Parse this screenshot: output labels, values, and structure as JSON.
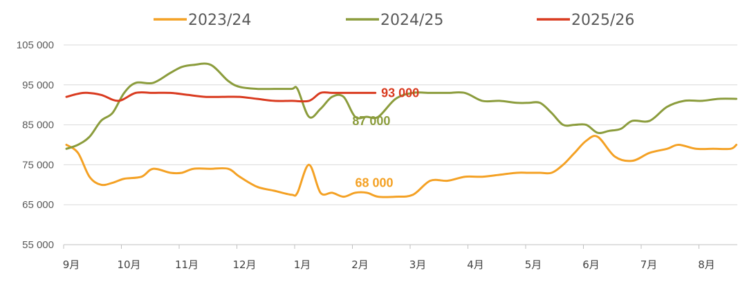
{
  "chart_data": {
    "type": "line",
    "title": "",
    "xlabel": "",
    "ylabel": "",
    "ylim": [
      55000,
      105000
    ],
    "yticks": [
      55000,
      65000,
      75000,
      85000,
      95000,
      105000
    ],
    "ytick_labels": [
      "55 000",
      "65 000",
      "75 000",
      "85 000",
      "95 000",
      "105 000"
    ],
    "categories": [
      "9月",
      "10月",
      "11月",
      "12月",
      "1月",
      "2月",
      "3月",
      "4月",
      "5月",
      "6月",
      "7月",
      "8月"
    ],
    "grid": "horizontal",
    "legend_position": "top",
    "series": [
      {
        "name": "2023/24",
        "color": "#F4A124",
        "x": [
          0.0,
          0.2,
          0.4,
          0.6,
          0.8,
          1.0,
          1.3,
          1.5,
          1.8,
          2.0,
          2.2,
          2.5,
          2.8,
          3.0,
          3.3,
          3.6,
          3.9,
          4.0,
          4.2,
          4.4,
          4.6,
          4.8,
          5.0,
          5.2,
          5.4,
          5.7,
          6.0,
          6.3,
          6.6,
          6.9,
          7.2,
          7.5,
          7.8,
          8.0,
          8.2,
          8.4,
          8.6,
          8.8,
          9.0,
          9.2,
          9.5,
          9.8,
          10.1,
          10.4,
          10.6,
          10.9,
          11.2,
          11.5,
          11.6
        ],
        "values": [
          80000,
          78000,
          72000,
          70000,
          70500,
          71500,
          72000,
          74000,
          73000,
          73000,
          74000,
          74000,
          74000,
          72000,
          69500,
          68500,
          67500,
          68000,
          75000,
          68000,
          68000,
          67000,
          68000,
          68000,
          67000,
          67000,
          67500,
          71000,
          71000,
          72000,
          72000,
          72500,
          73000,
          73000,
          73000,
          73000,
          75000,
          78000,
          81000,
          82000,
          77000,
          76000,
          78000,
          79000,
          80000,
          79000,
          79000,
          79000,
          80000
        ]
      },
      {
        "name": "2024/25",
        "color": "#8B9C3C",
        "x": [
          0.0,
          0.2,
          0.4,
          0.6,
          0.8,
          1.0,
          1.2,
          1.5,
          1.8,
          2.0,
          2.2,
          2.5,
          2.8,
          3.0,
          3.3,
          3.6,
          3.9,
          4.0,
          4.2,
          4.4,
          4.6,
          4.8,
          5.0,
          5.2,
          5.4,
          5.7,
          6.0,
          6.3,
          6.6,
          6.9,
          7.2,
          7.5,
          7.8,
          8.0,
          8.2,
          8.4,
          8.6,
          8.8,
          9.0,
          9.2,
          9.4,
          9.6,
          9.8,
          10.1,
          10.4,
          10.7,
          11.0,
          11.3,
          11.6
        ],
        "values": [
          79000,
          80000,
          82000,
          86000,
          88000,
          93000,
          95500,
          95500,
          98000,
          99500,
          100000,
          100000,
          96000,
          94500,
          94000,
          94000,
          94000,
          94000,
          87000,
          89000,
          92000,
          92000,
          87000,
          87000,
          87000,
          91500,
          93000,
          93000,
          93000,
          93000,
          91000,
          91000,
          90500,
          90500,
          90500,
          88000,
          85000,
          85000,
          85000,
          83000,
          83500,
          84000,
          86000,
          86000,
          89500,
          91000,
          91000,
          91500,
          91500
        ]
      },
      {
        "name": "2025/26",
        "color": "#D93A1F",
        "x": [
          0.0,
          0.3,
          0.6,
          0.9,
          1.2,
          1.5,
          1.8,
          2.1,
          2.4,
          2.7,
          3.0,
          3.3,
          3.6,
          3.9,
          4.2,
          4.4,
          4.6,
          4.9,
          5.2,
          5.35
        ],
        "values": [
          92000,
          93000,
          92500,
          91000,
          93000,
          93000,
          93000,
          92500,
          92000,
          92000,
          92000,
          91500,
          91000,
          91000,
          91000,
          93000,
          93000,
          93000,
          93000,
          93000
        ]
      }
    ],
    "annotations": [
      {
        "text": "93 000",
        "series": "2025/26",
        "color": "#D93A1F",
        "x": 5.45,
        "y": 93000
      },
      {
        "text": "87 000",
        "series": "2024/25",
        "color": "#8B9C3C",
        "x": 4.95,
        "y": 86000
      },
      {
        "text": "68 000",
        "series": "2023/24",
        "color": "#F4A124",
        "x": 5.0,
        "y": 70500
      }
    ]
  }
}
